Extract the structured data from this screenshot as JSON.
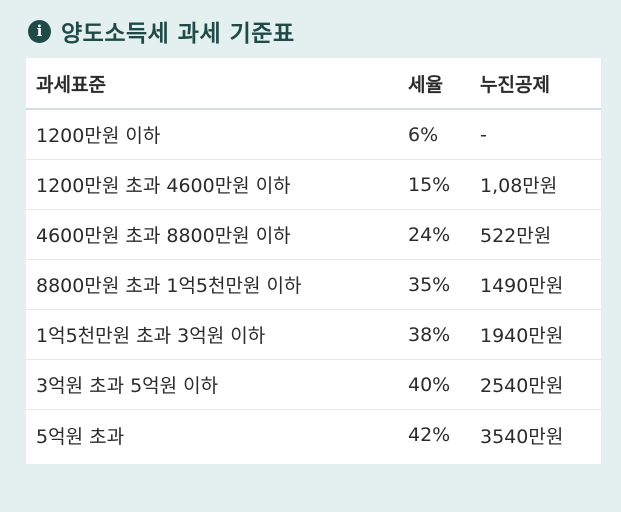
{
  "header": {
    "icon": "info-icon",
    "title": "양도소득세 과세 기준표"
  },
  "table": {
    "columns": [
      "과세표준",
      "세율",
      "누진공제"
    ],
    "rows": [
      [
        "1200만원 이하",
        "6%",
        "-"
      ],
      [
        "1200만원 초과 4600만원 이하",
        "15%",
        "1,08만원"
      ],
      [
        "4600만원 초과 8800만원 이하",
        "24%",
        "522만원"
      ],
      [
        "8800만원 초과 1억5천만원 이하",
        "35%",
        "1490만원"
      ],
      [
        "1억5천만원 초과 3억원 이하",
        "38%",
        "1940만원"
      ],
      [
        "3억원 초과 5억원 이하",
        "40%",
        "2540만원"
      ],
      [
        "5억원 초과",
        "42%",
        "3540만원"
      ]
    ]
  }
}
